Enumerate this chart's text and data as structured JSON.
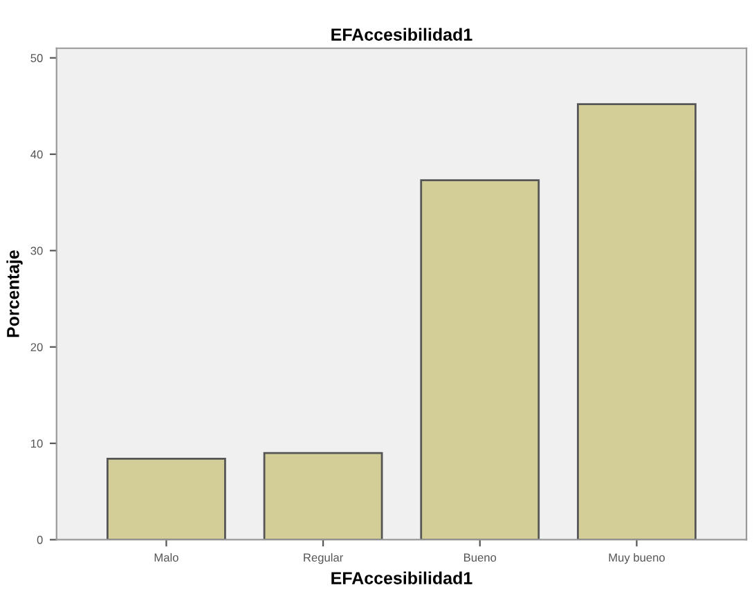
{
  "chart_data": {
    "type": "bar",
    "title": "EFAccesibilidad1",
    "xlabel": "EFAccesibilidad1",
    "ylabel": "Porcentaje",
    "categories": [
      "Malo",
      "Regular",
      "Bueno",
      "Muy bueno"
    ],
    "values": [
      8.4,
      9.0,
      37.3,
      45.2
    ],
    "color": "#d3ce98",
    "ylim": [
      0,
      51
    ],
    "yticks": [
      0,
      10,
      20,
      30,
      40,
      50
    ],
    "grid": false
  }
}
